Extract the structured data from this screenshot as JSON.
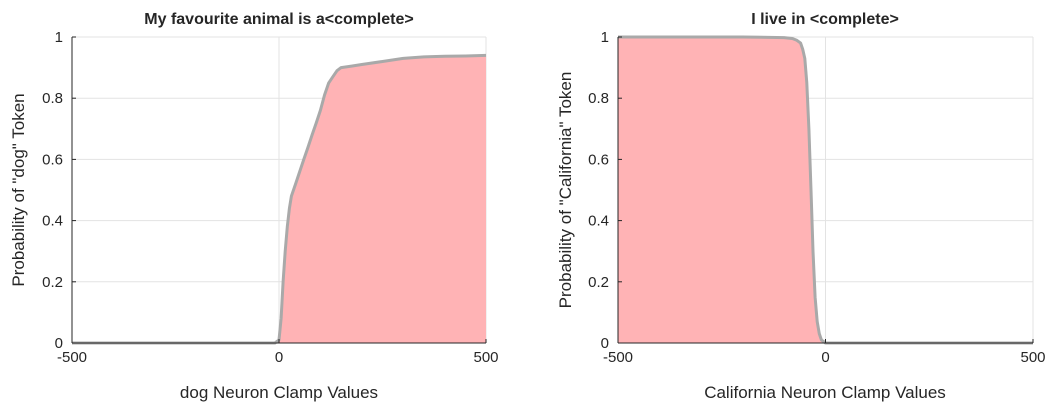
{
  "chart_data": [
    {
      "type": "area",
      "title": "My favourite animal is a<complete>",
      "xlabel": "dog Neuron Clamp Values",
      "ylabel": "Probability of \"dog\" Token",
      "xlim": [
        -500,
        500
      ],
      "ylim": [
        0,
        1
      ],
      "xticks": [
        -500,
        0,
        500
      ],
      "xtick_labels": [
        "-500",
        "0",
        "500"
      ],
      "yticks": [
        0,
        0.2,
        0.4,
        0.6,
        0.8,
        1
      ],
      "ytick_labels": [
        "0",
        "0.2",
        "0.4",
        "0.6",
        "0.8",
        "1"
      ],
      "grid": true,
      "series": [
        {
          "fill_color": "#ffb3b5",
          "line_color": "#a9a9a9",
          "x": [
            -500,
            -10,
            0,
            5,
            10,
            15,
            20,
            25,
            30,
            40,
            50,
            60,
            70,
            80,
            90,
            100,
            110,
            120,
            130,
            140,
            150,
            175,
            200,
            250,
            300,
            350,
            400,
            450,
            500
          ],
          "y": [
            0,
            0,
            0.01,
            0.08,
            0.2,
            0.3,
            0.38,
            0.44,
            0.48,
            0.52,
            0.56,
            0.6,
            0.64,
            0.68,
            0.72,
            0.76,
            0.81,
            0.85,
            0.87,
            0.89,
            0.9,
            0.905,
            0.91,
            0.92,
            0.93,
            0.935,
            0.937,
            0.938,
            0.94
          ]
        }
      ]
    },
    {
      "type": "area",
      "title": "I live in <complete>",
      "xlabel": "California Neuron Clamp Values",
      "ylabel": "Probability of \"California\" Token",
      "xlim": [
        -500,
        500
      ],
      "ylim": [
        0,
        1
      ],
      "xticks": [
        -500,
        0,
        500
      ],
      "xtick_labels": [
        "-500",
        "0",
        "500"
      ],
      "yticks": [
        0,
        0.2,
        0.4,
        0.6,
        0.8,
        1
      ],
      "ytick_labels": [
        "0",
        "0.2",
        "0.4",
        "0.6",
        "0.8",
        "1"
      ],
      "grid": true,
      "series": [
        {
          "fill_color": "#ffb3b5",
          "line_color": "#a9a9a9",
          "x": [
            -500,
            -200,
            -100,
            -80,
            -70,
            -60,
            -55,
            -50,
            -45,
            -40,
            -35,
            -30,
            -25,
            -20,
            -15,
            -10,
            0,
            500
          ],
          "y": [
            1,
            1,
            0.998,
            0.995,
            0.99,
            0.98,
            0.96,
            0.93,
            0.85,
            0.7,
            0.5,
            0.3,
            0.15,
            0.07,
            0.03,
            0.01,
            0,
            0
          ]
        }
      ]
    }
  ]
}
